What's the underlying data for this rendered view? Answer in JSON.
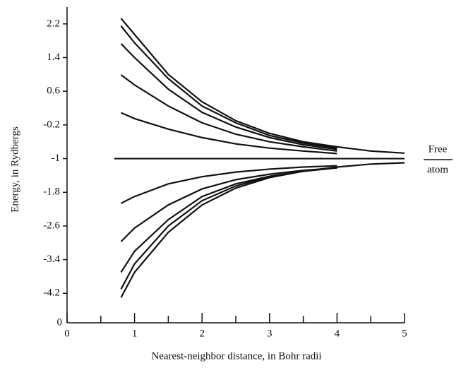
{
  "chart_data": {
    "type": "line",
    "x_label": "Nearest-neighbor distance, in Bohr radii",
    "y_label": "Energy, in Rydbergs",
    "x": [
      0.8,
      1,
      1.5,
      2,
      2.5,
      3,
      3.5,
      4,
      4.5,
      5
    ],
    "series": [
      {
        "color": "#111111",
        "values": [
          2.33,
          1.95,
          1.0,
          0.35,
          -0.1,
          -0.4,
          -0.6,
          -0.72,
          -0.82,
          -0.87
        ]
      },
      {
        "color": "#111111",
        "values": [
          2.15,
          1.75,
          0.9,
          0.25,
          -0.15,
          -0.45,
          -0.63,
          -0.75,
          null,
          null
        ]
      },
      {
        "color": "#111111",
        "values": [
          1.73,
          1.4,
          0.65,
          0.1,
          -0.25,
          -0.5,
          -0.67,
          -0.78,
          null,
          null
        ]
      },
      {
        "color": "#111111",
        "values": [
          0.99,
          0.75,
          0.25,
          -0.15,
          -0.42,
          -0.6,
          -0.72,
          -0.82,
          null,
          null
        ]
      },
      {
        "color": "#111111",
        "values": [
          0.09,
          -0.05,
          -0.3,
          -0.5,
          -0.65,
          -0.75,
          -0.82,
          -0.88,
          null,
          null
        ]
      },
      {
        "color": "#111111",
        "x": [
          0.7,
          5
        ],
        "values": [
          -1.0,
          -1.0
        ]
      },
      {
        "color": "#111111",
        "values": [
          -2.06,
          -1.9,
          -1.6,
          -1.43,
          -1.32,
          -1.25,
          -1.2,
          -1.17,
          null,
          null
        ]
      },
      {
        "color": "#111111",
        "values": [
          -2.97,
          -2.65,
          -2.1,
          -1.72,
          -1.5,
          -1.37,
          -1.28,
          -1.22,
          null,
          null
        ]
      },
      {
        "color": "#111111",
        "values": [
          -3.7,
          -3.2,
          -2.45,
          -1.9,
          -1.6,
          -1.42,
          -1.3,
          -1.22,
          null,
          null
        ]
      },
      {
        "color": "#111111",
        "values": [
          -4.1,
          -3.5,
          -2.6,
          -2.0,
          -1.65,
          -1.43,
          -1.3,
          -1.22,
          null,
          null
        ]
      },
      {
        "color": "#111111",
        "values": [
          -4.3,
          -3.7,
          -2.75,
          -2.1,
          -1.7,
          -1.45,
          -1.3,
          -1.2,
          -1.13,
          -1.1
        ]
      }
    ],
    "xlim": [
      0,
      5
    ],
    "xticks": [
      0,
      1,
      2,
      3,
      4,
      5
    ],
    "xminorticks": [
      0.5,
      1.5,
      2.5,
      3.5,
      4.5
    ],
    "ylim": [
      -4.9,
      2.6
    ],
    "yticks": [
      2.2,
      1.4,
      0.6,
      -0.2,
      -1.0,
      -1.8,
      -2.6,
      -3.4,
      -4.2
    ],
    "y_axis_break_label": "0",
    "annotation": {
      "top": "Free",
      "bottom": "atom"
    }
  }
}
